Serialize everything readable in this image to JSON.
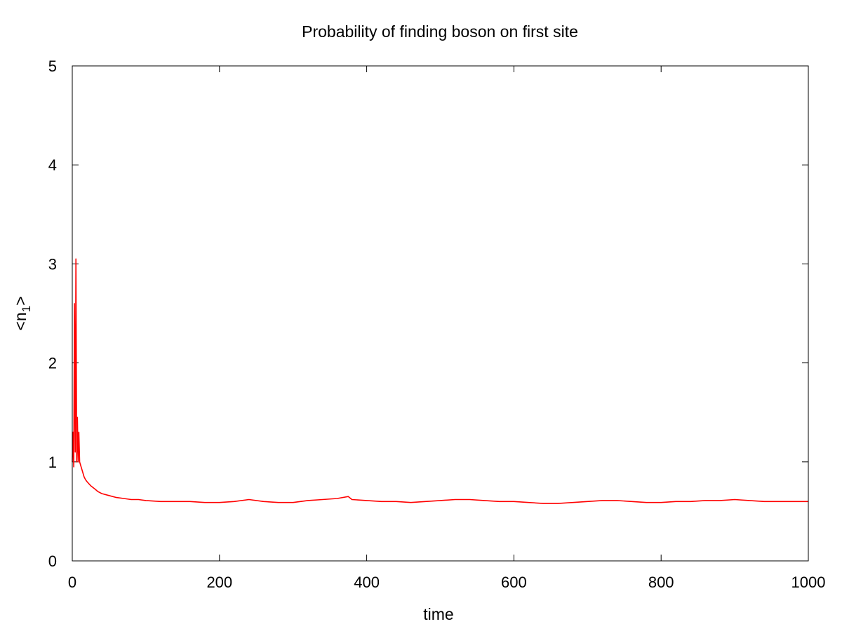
{
  "chart_data": {
    "type": "line",
    "title": "Probability of finding boson on first site",
    "xlabel": "time",
    "ylabel": "<n",
    "ylabel_subscript": "1",
    "ylabel_suffix": ">",
    "xlim": [
      0,
      1000
    ],
    "ylim": [
      0,
      5
    ],
    "xticks": [
      0,
      200,
      400,
      600,
      800,
      1000
    ],
    "xtick_labels": [
      "0",
      "200",
      "400",
      "600",
      "800",
      "1000"
    ],
    "yticks": [
      0,
      1,
      2,
      3,
      4,
      5
    ],
    "ytick_labels": [
      "0",
      "1",
      "2",
      "3",
      "4",
      "5"
    ],
    "grid": false,
    "legend": "none",
    "series": [
      {
        "color": "#ff0000",
        "x": [
          0,
          1,
          2,
          3,
          4,
          5,
          6,
          7,
          8,
          9,
          10,
          12,
          14,
          16,
          18,
          20,
          25,
          30,
          35,
          40,
          50,
          60,
          70,
          80,
          90,
          100,
          120,
          140,
          160,
          180,
          200,
          220,
          240,
          260,
          280,
          300,
          320,
          340,
          360,
          375,
          380,
          400,
          420,
          440,
          460,
          480,
          500,
          520,
          540,
          560,
          580,
          600,
          620,
          640,
          660,
          680,
          700,
          720,
          740,
          760,
          780,
          800,
          820,
          840,
          860,
          880,
          900,
          920,
          940,
          960,
          980,
          1000
        ],
        "y": [
          1.0,
          1.3,
          0.95,
          2.6,
          1.1,
          3.05,
          1.0,
          1.45,
          1.0,
          1.3,
          1.0,
          0.95,
          0.9,
          0.85,
          0.82,
          0.8,
          0.76,
          0.73,
          0.7,
          0.68,
          0.66,
          0.64,
          0.63,
          0.62,
          0.62,
          0.61,
          0.6,
          0.6,
          0.6,
          0.59,
          0.59,
          0.6,
          0.62,
          0.6,
          0.59,
          0.59,
          0.61,
          0.62,
          0.63,
          0.65,
          0.62,
          0.61,
          0.6,
          0.6,
          0.59,
          0.6,
          0.61,
          0.62,
          0.62,
          0.61,
          0.6,
          0.6,
          0.59,
          0.58,
          0.58,
          0.59,
          0.6,
          0.61,
          0.61,
          0.6,
          0.59,
          0.59,
          0.6,
          0.6,
          0.61,
          0.61,
          0.62,
          0.61,
          0.6,
          0.6,
          0.6,
          0.6
        ]
      }
    ]
  }
}
